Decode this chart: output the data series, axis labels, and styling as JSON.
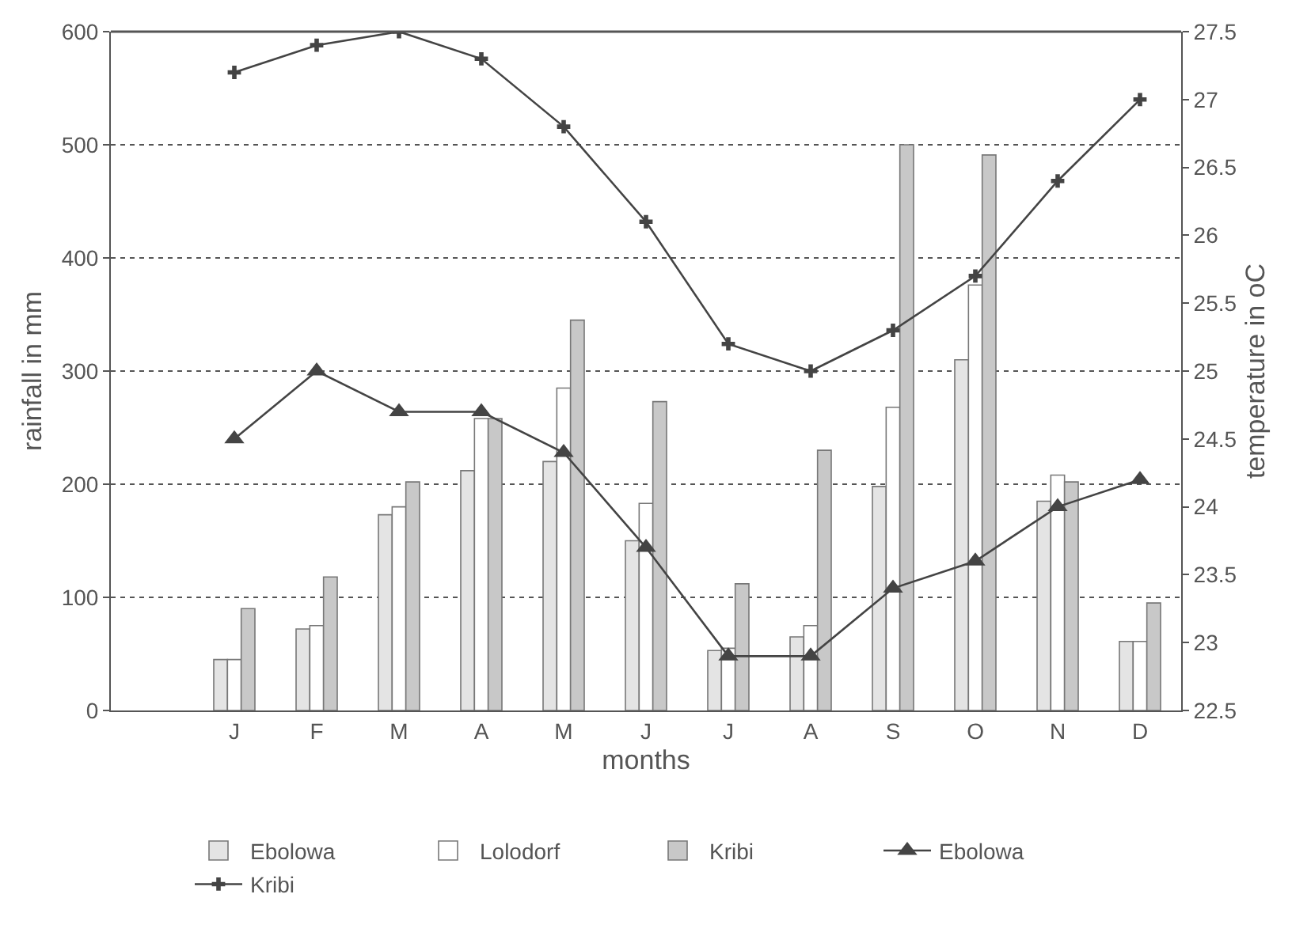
{
  "chart_data": {
    "type": "bar",
    "xlabel": "months",
    "ylabel": "rainfall in mm",
    "y2label": "temperature in oC",
    "categories": [
      "J",
      "F",
      "M",
      "A",
      "M",
      "J",
      "J",
      "A",
      "S",
      "O",
      "N",
      "D"
    ],
    "series": [
      {
        "name": "Ebolowa",
        "color": "#e4e4e4",
        "values": [
          45,
          72,
          173,
          212,
          220,
          150,
          53,
          65,
          198,
          310,
          185,
          61
        ]
      },
      {
        "name": "Lolodorf",
        "color": "#ffffff",
        "values": [
          45,
          75,
          180,
          258,
          285,
          183,
          55,
          75,
          268,
          376,
          208,
          61
        ]
      },
      {
        "name": "Kribi",
        "color": "#c8c8c8",
        "values": [
          90,
          118,
          202,
          258,
          345,
          273,
          112,
          230,
          500,
          491,
          202,
          95
        ]
      },
      {
        "name": "Ebolowa",
        "type": "line",
        "axis": "y2",
        "marker": "triangle",
        "color": "#444444",
        "values": [
          24.5,
          25,
          24.7,
          24.7,
          24.4,
          23.7,
          22.9,
          22.9,
          23.4,
          23.6,
          24.0,
          24.2
        ]
      },
      {
        "name": "Kribi",
        "type": "line",
        "axis": "y2",
        "marker": "cross",
        "color": "#444444",
        "values": [
          27.2,
          27.4,
          27.5,
          27.3,
          26.8,
          26.1,
          25.2,
          25.0,
          25.3,
          25.7,
          26.4,
          27.0
        ]
      }
    ],
    "ylim": [
      0,
      600
    ],
    "yticks": [
      0,
      100,
      200,
      300,
      400,
      500,
      600
    ],
    "y2lim": [
      22.5,
      27.5
    ],
    "y2ticks": [
      22.5,
      23,
      23.5,
      24,
      24.5,
      25,
      25.5,
      26,
      26.5,
      27,
      27.5
    ],
    "grid": "y",
    "legend": "bottom"
  }
}
